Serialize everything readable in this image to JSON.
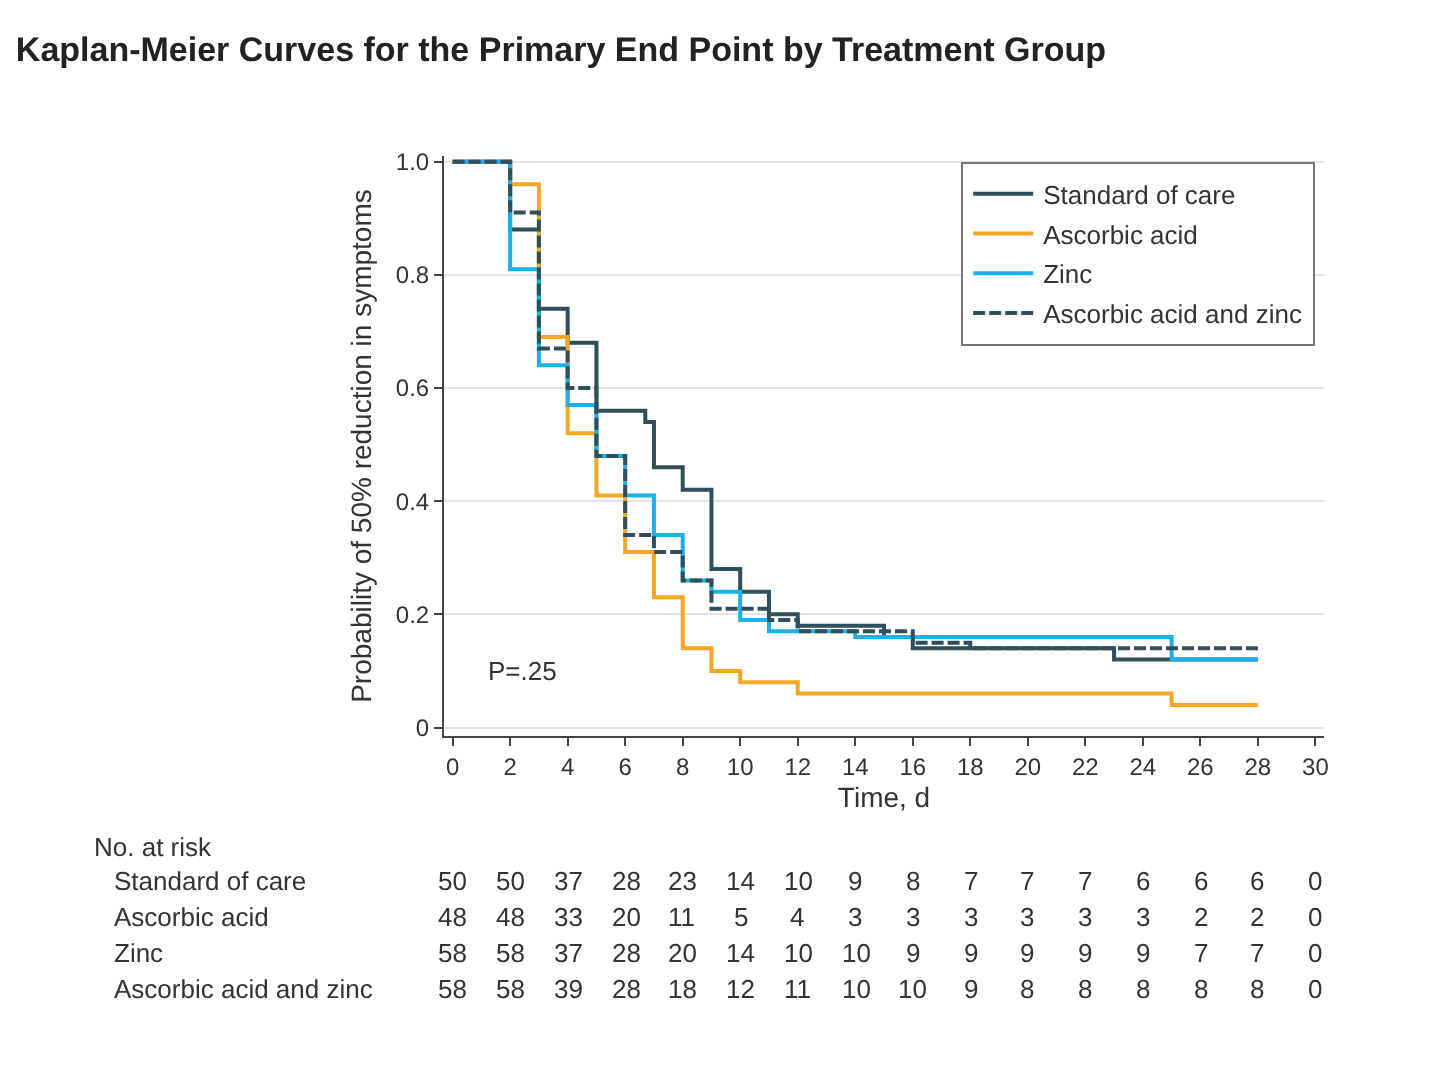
{
  "chart_data": {
    "type": "step",
    "title": "Kaplan-Meier Curves for the Primary End Point by Treatment Group",
    "xlabel": "Time, d",
    "ylabel": "Probability of 50% reduction in symptoms",
    "xlim": [
      -0.3,
      30.3
    ],
    "xticks": [
      0,
      2,
      4,
      6,
      8,
      10,
      12,
      14,
      16,
      18,
      20,
      22,
      24,
      26,
      28,
      30
    ],
    "ylim": [
      -0.015,
      1.01
    ],
    "yticks": [
      0,
      {
        "value": 0.2,
        "label": "0.2"
      },
      {
        "value": 0.4,
        "label": "0.4"
      },
      {
        "value": 0.6,
        "label": "0.6"
      },
      {
        "value": 0.8,
        "label": "0.8"
      },
      {
        "value": 1,
        "label": "1.0"
      }
    ],
    "grid": "y",
    "legend": "top right",
    "marker": "none",
    "series": [
      {
        "name": "Standard of care",
        "color": "#2f4f5a",
        "line_style": "solid",
        "x": [
          0,
          2,
          3,
          4,
          5,
          6.7,
          7,
          8,
          9,
          10,
          11,
          12,
          15,
          16,
          23,
          28
        ],
        "values": [
          1,
          0.88,
          0.74,
          0.68,
          0.56,
          0.54,
          0.46,
          0.42,
          0.28,
          0.24,
          0.2,
          0.18,
          0.16,
          0.14,
          0.12,
          0.12
        ]
      },
      {
        "name": "Ascorbic acid",
        "color": "#f5a623",
        "line_style": "solid",
        "x": [
          0,
          2,
          3,
          4,
          5,
          6,
          7,
          8,
          9,
          10,
          12,
          25,
          28
        ],
        "values": [
          1,
          0.96,
          0.69,
          0.52,
          0.41,
          0.31,
          0.23,
          0.14,
          0.1,
          0.08,
          0.06,
          0.04,
          0.04
        ]
      },
      {
        "name": "Zinc",
        "color": "#1ab0e8",
        "line_style": "solid",
        "x": [
          0,
          2,
          3,
          4,
          5,
          6,
          7,
          8,
          9,
          10,
          11,
          14,
          25,
          28
        ],
        "values": [
          1,
          0.81,
          0.64,
          0.57,
          0.48,
          0.41,
          0.34,
          0.26,
          0.24,
          0.19,
          0.17,
          0.16,
          0.12,
          0.12
        ]
      },
      {
        "name": "Ascorbic acid and zinc",
        "color": "#2f4f5a",
        "line_style": "dashed",
        "x": [
          0,
          2,
          3,
          4,
          5,
          6,
          7,
          8,
          9,
          11,
          12,
          16,
          18,
          28
        ],
        "values": [
          1,
          0.91,
          0.67,
          0.6,
          0.48,
          0.34,
          0.31,
          0.26,
          0.21,
          0.19,
          0.17,
          0.15,
          0.14,
          0.14
        ]
      }
    ],
    "annotations": [
      "P=.25",
      "No. at risk",
      "Standard of care 50 50 37 28 23 14 10 9 8 7 7 7 6 6 6 0",
      "Ascorbic acid 48 48 33 20 11 5 4 3 3 3 3 3 3 2 2 0",
      "Zinc 58 58 37 28 20 14 10 10 9 9 9 9 9 7 7 0",
      "Ascorbic acid and zinc 58 58 39 28 18 12 11 10 10 9 8 8 8 8 8 0"
    ]
  }
}
